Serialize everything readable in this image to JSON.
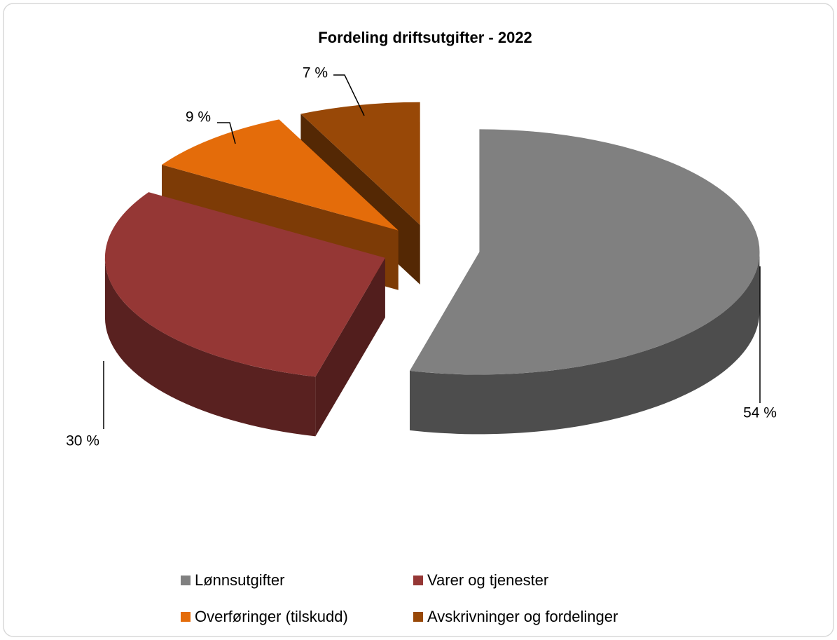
{
  "chart_data": {
    "type": "pie",
    "title": "Fordeling driftsutgifter - 2022",
    "categories": [
      "Lønnsutgifter",
      "Varer og tjenester",
      "Overføringer (tilskudd)",
      "Avskrivninger og fordelinger"
    ],
    "values": [
      54,
      30,
      9,
      7
    ],
    "value_labels": [
      "54 %",
      "30 %",
      "9 %",
      "7 %"
    ],
    "colors": [
      "#808080",
      "#953735",
      "#e46c0a",
      "#984807"
    ],
    "legend": "bottom"
  }
}
